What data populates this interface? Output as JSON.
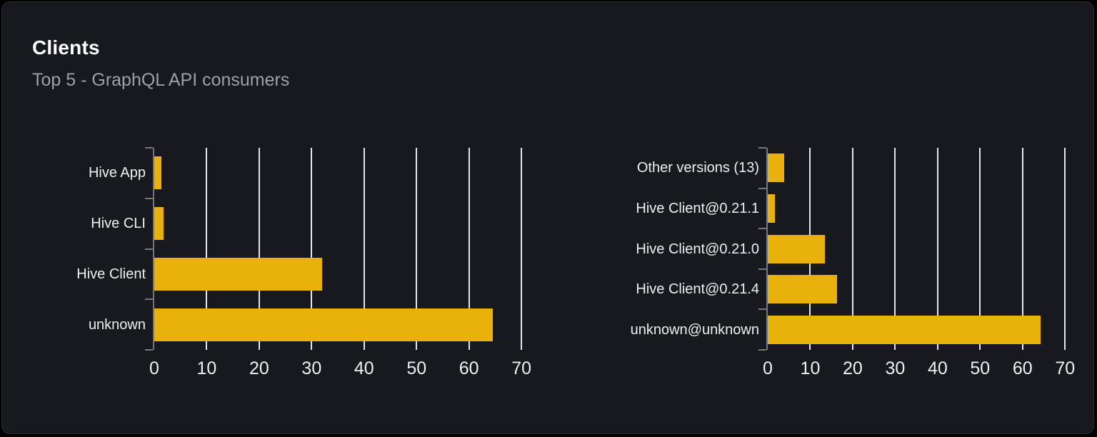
{
  "panel": {
    "title": "Clients",
    "subtitle": "Top 5 - GraphQL API consumers"
  },
  "colors": {
    "page_bg": "#000000",
    "panel_bg": "#17191F",
    "panel_border": "#2A2C33",
    "bar": "#E8B10C",
    "grid": "#E3E8F0",
    "axis": "#75777D",
    "title_text": "#FFFFFF",
    "subtitle_text": "#9CA0A8",
    "label_text": "#EEEFF2"
  },
  "chart_data": [
    {
      "type": "bar",
      "orientation": "horizontal",
      "name": "clients-by-name",
      "categories": [
        "Hive App",
        "Hive CLI",
        "Hive Client",
        "unknown"
      ],
      "values": [
        1.4,
        1.8,
        32,
        64.5
      ],
      "xticks": [
        0,
        10,
        20,
        30,
        40,
        50,
        60,
        70
      ],
      "xlim": [
        0,
        70.8
      ],
      "grid": true,
      "legend": "none",
      "title": "",
      "xlabel": "",
      "ylabel": ""
    },
    {
      "type": "bar",
      "orientation": "horizontal",
      "name": "clients-by-version",
      "categories": [
        "Other versions (13)",
        "Hive Client@0.21.1",
        "Hive Client@0.21.0",
        "Hive Client@0.21.4",
        "unknown@unknown"
      ],
      "values": [
        3.8,
        1.6,
        13.4,
        16.3,
        64.3
      ],
      "xticks": [
        0,
        10,
        20,
        30,
        40,
        50,
        60,
        70
      ],
      "xlim": [
        0,
        70.8
      ],
      "grid": true,
      "legend": "none",
      "title": "",
      "xlabel": "",
      "ylabel": ""
    }
  ]
}
